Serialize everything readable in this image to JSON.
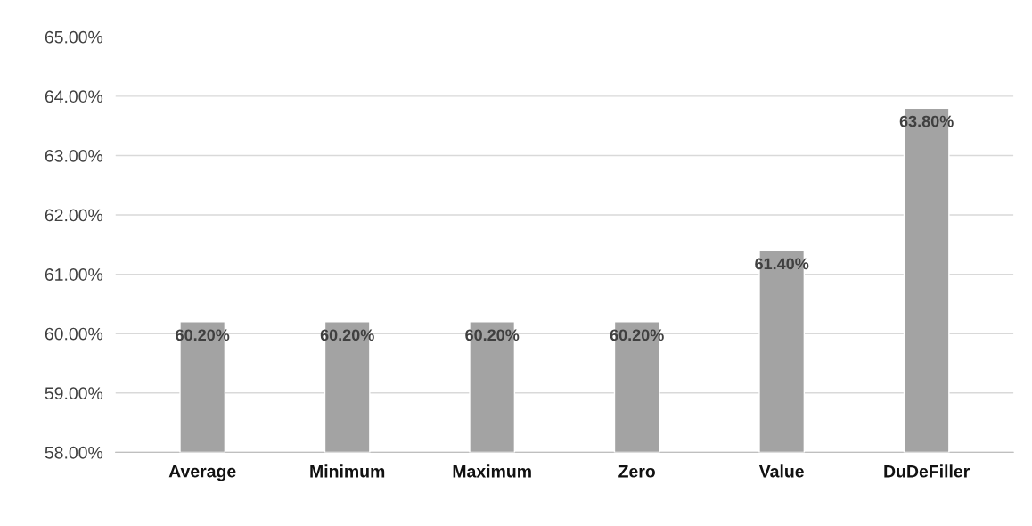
{
  "chart_data": {
    "type": "bar",
    "categories": [
      "Average",
      "Minimum",
      "Maximum",
      "Zero",
      "Value",
      "DuDeFiller"
    ],
    "values": [
      60.2,
      60.2,
      60.2,
      60.2,
      61.4,
      63.8
    ],
    "value_labels": [
      "60.20%",
      "60.20%",
      "60.20%",
      "60.20%",
      "61.40%",
      "63.80%"
    ],
    "color": "#a3a3a3",
    "ylim": [
      58,
      65
    ],
    "yticks": [
      {
        "value": 58,
        "label": "58.00%"
      },
      {
        "value": 59,
        "label": "59.00%"
      },
      {
        "value": 60,
        "label": "60.00%"
      },
      {
        "value": 61,
        "label": "61.00%"
      },
      {
        "value": 62,
        "label": "62.00%"
      },
      {
        "value": 63,
        "label": "63.00%"
      },
      {
        "value": 64,
        "label": "64.00%"
      },
      {
        "value": 65,
        "label": "65.00%"
      }
    ],
    "grid": "y"
  }
}
